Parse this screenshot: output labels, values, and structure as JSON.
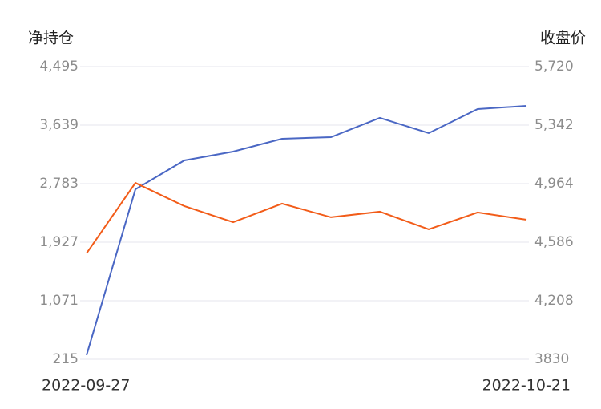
{
  "chart_data": {
    "type": "line",
    "y_axis_title": "净持仓",
    "y2_axis_title": "收盘价",
    "categories": [
      "2022-09-27",
      null,
      null,
      null,
      null,
      null,
      null,
      null,
      null,
      "2022-10-21"
    ],
    "series": [
      {
        "color": "#4a67c4",
        "values": [
          274,
          2701,
          3123,
          3252,
          3440,
          3463,
          3745,
          3522,
          3874,
          3920
        ]
      },
      {
        "color": "#f25c19",
        "axis": "y2",
        "values": [
          4514,
          4969,
          4819,
          4715,
          4835,
          4747,
          4783,
          4669,
          4778,
          4731
        ]
      }
    ],
    "ylim": [
      215,
      4495
    ],
    "yticks": [
      215,
      {
        "value": 1071,
        "label": "1,071"
      },
      {
        "value": 1927,
        "label": "1,927"
      },
      {
        "value": 2783,
        "label": "2,783"
      },
      {
        "value": 3639,
        "label": "3,639"
      },
      {
        "value": 4495,
        "label": "4,495"
      }
    ],
    "y2lim": [
      3830,
      5720
    ],
    "y2ticks": [
      3830,
      {
        "value": 4208,
        "label": "4,208"
      },
      {
        "value": 4586,
        "label": "4,586"
      },
      {
        "value": 4964,
        "label": "4,964"
      },
      {
        "value": 5342,
        "label": "5,342"
      },
      {
        "value": 5720,
        "label": "5,720"
      }
    ],
    "grid": true
  }
}
